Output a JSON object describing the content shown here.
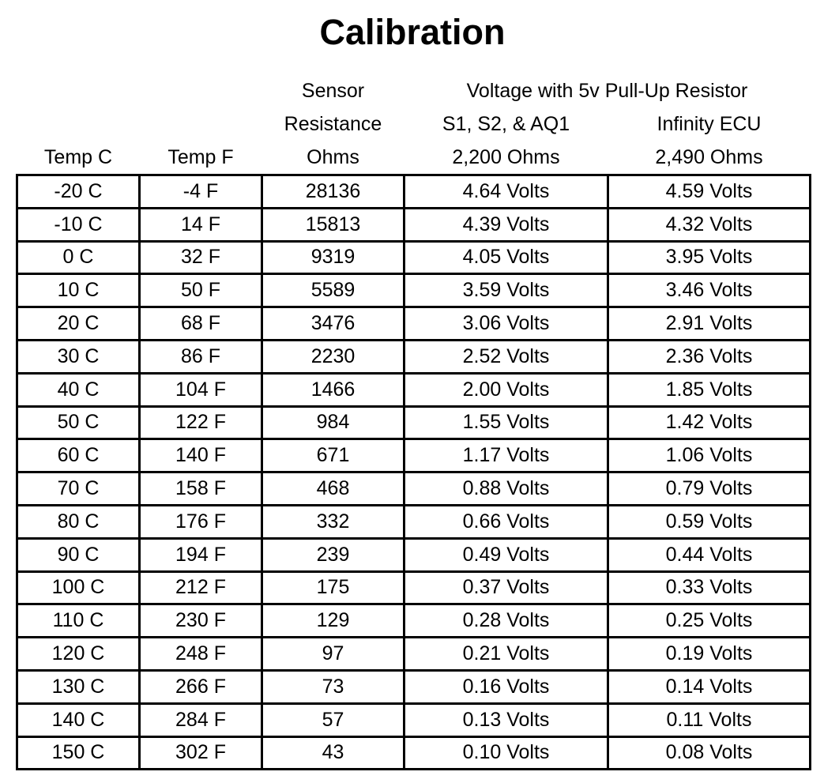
{
  "title": "Calibration",
  "colors": {
    "text": "#000000",
    "border": "#000000",
    "background": "#ffffff"
  },
  "table": {
    "header": {
      "sensor_title": "Sensor",
      "voltage_group_title": "Voltage with 5v Pull-Up Resistor",
      "resistance_label": "Resistance",
      "s1s2aq1_label": "S1, S2, & AQ1",
      "infinity_label": "Infinity ECU",
      "temp_c": "Temp C",
      "temp_f": "Temp F",
      "ohms": "Ohms",
      "ohms_2200": "2,200 Ohms",
      "ohms_2490": "2,490 Ohms"
    },
    "rows": [
      [
        "-20 C",
        "-4 F",
        "28136",
        "4.64 Volts",
        "4.59 Volts"
      ],
      [
        "-10 C",
        "14 F",
        "15813",
        "4.39 Volts",
        "4.32 Volts"
      ],
      [
        "0 C",
        "32 F",
        "9319",
        "4.05 Volts",
        "3.95 Volts"
      ],
      [
        "10 C",
        "50 F",
        "5589",
        "3.59 Volts",
        "3.46 Volts"
      ],
      [
        "20 C",
        "68 F",
        "3476",
        "3.06 Volts",
        "2.91 Volts"
      ],
      [
        "30 C",
        "86 F",
        "2230",
        "2.52 Volts",
        "2.36 Volts"
      ],
      [
        "40 C",
        "104 F",
        "1466",
        "2.00 Volts",
        "1.85 Volts"
      ],
      [
        "50 C",
        "122 F",
        "984",
        "1.55 Volts",
        "1.42 Volts"
      ],
      [
        "60 C",
        "140 F",
        "671",
        "1.17 Volts",
        "1.06 Volts"
      ],
      [
        "70 C",
        "158 F",
        "468",
        "0.88 Volts",
        "0.79 Volts"
      ],
      [
        "80 C",
        "176 F",
        "332",
        "0.66 Volts",
        "0.59 Volts"
      ],
      [
        "90 C",
        "194 F",
        "239",
        "0.49 Volts",
        "0.44 Volts"
      ],
      [
        "100 C",
        "212 F",
        "175",
        "0.37 Volts",
        "0.33 Volts"
      ],
      [
        "110 C",
        "230 F",
        "129",
        "0.28 Volts",
        "0.25 Volts"
      ],
      [
        "120 C",
        "248 F",
        "97",
        "0.21 Volts",
        "0.19 Volts"
      ],
      [
        "130 C",
        "266 F",
        "73",
        "0.16 Volts",
        "0.14 Volts"
      ],
      [
        "140 C",
        "284 F",
        "57",
        "0.13 Volts",
        "0.11 Volts"
      ],
      [
        "150 C",
        "302 F",
        "43",
        "0.10 Volts",
        "0.08 Volts"
      ]
    ]
  },
  "chart_data": {
    "type": "table",
    "title": "Calibration",
    "columns": [
      "Temp C",
      "Temp F",
      "Sensor Resistance Ohms",
      "Voltage with 5v Pull-Up Resistor - S1, S2, & AQ1 (2,200 Ohms)",
      "Voltage with 5v Pull-Up Resistor - Infinity ECU (2,490 Ohms)"
    ],
    "temp_c": [
      -20,
      -10,
      0,
      10,
      20,
      30,
      40,
      50,
      60,
      70,
      80,
      90,
      100,
      110,
      120,
      130,
      140,
      150
    ],
    "temp_f": [
      -4,
      14,
      32,
      50,
      68,
      86,
      104,
      122,
      140,
      158,
      176,
      194,
      212,
      230,
      248,
      266,
      284,
      302
    ],
    "sensor_resistance_ohms": [
      28136,
      15813,
      9319,
      5589,
      3476,
      2230,
      1466,
      984,
      671,
      468,
      332,
      239,
      175,
      129,
      97,
      73,
      57,
      43
    ],
    "volts_2200_ohm_pullup": [
      4.64,
      4.39,
      4.05,
      3.59,
      3.06,
      2.52,
      2.0,
      1.55,
      1.17,
      0.88,
      0.66,
      0.49,
      0.37,
      0.28,
      0.21,
      0.16,
      0.13,
      0.1
    ],
    "volts_2490_ohm_pullup": [
      4.59,
      4.32,
      3.95,
      3.46,
      2.91,
      2.36,
      1.85,
      1.42,
      1.06,
      0.79,
      0.59,
      0.44,
      0.33,
      0.25,
      0.19,
      0.14,
      0.11,
      0.08
    ]
  }
}
